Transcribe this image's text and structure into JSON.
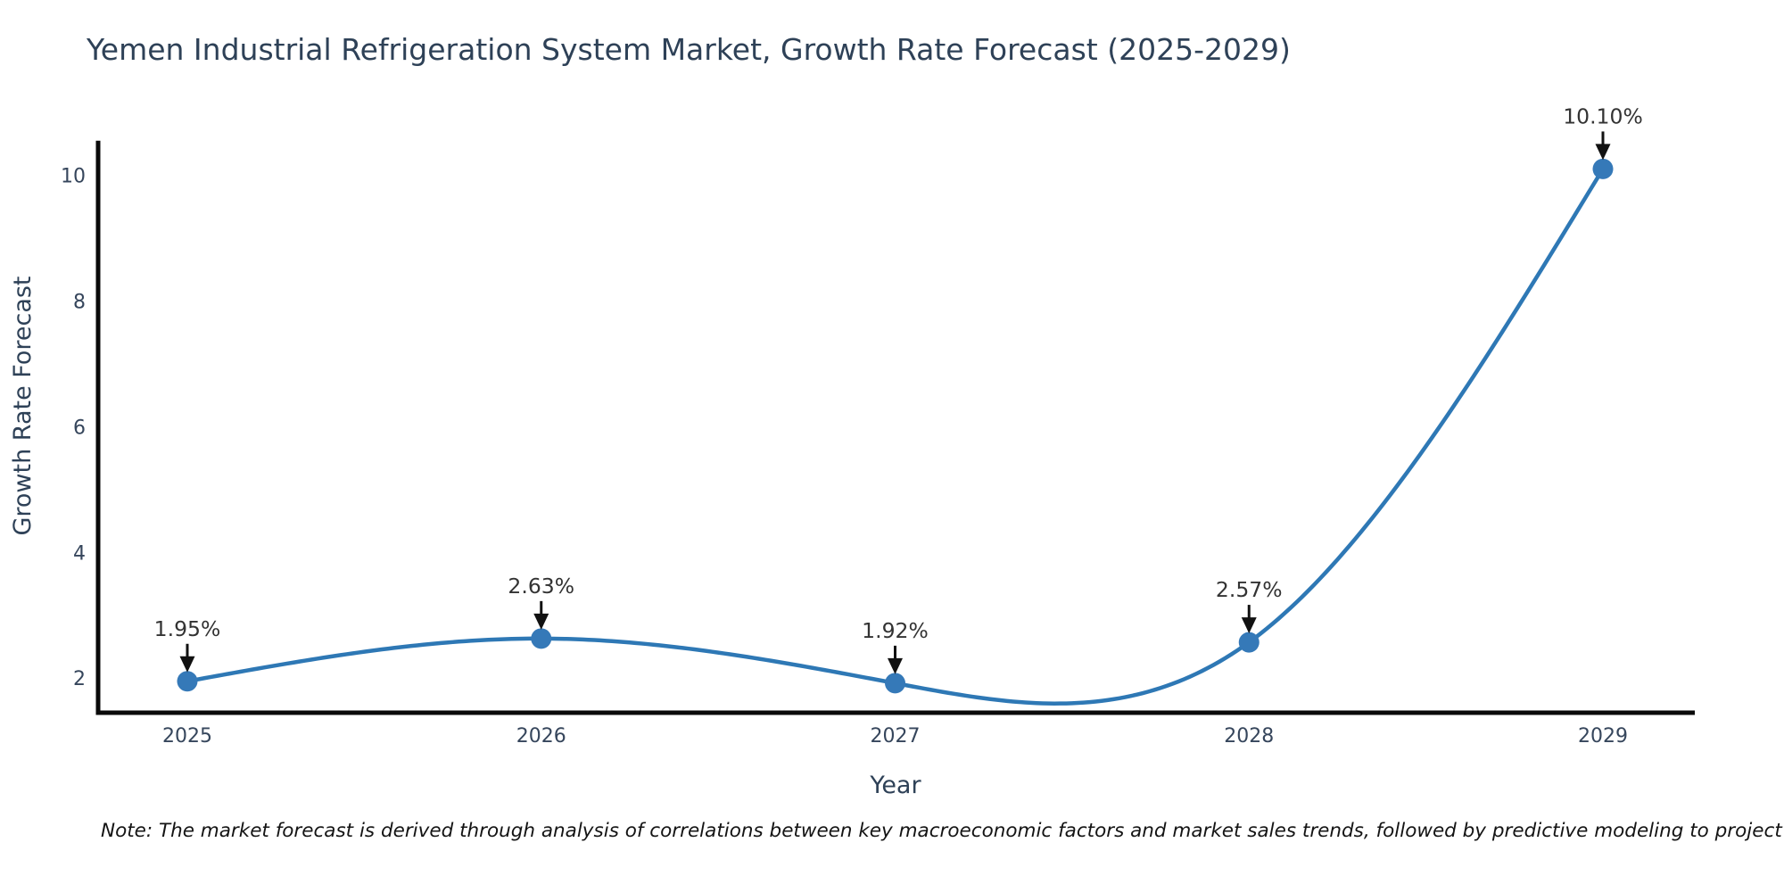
{
  "page": {
    "background": "#ffffff"
  },
  "chart_data": {
    "type": "line",
    "title": "Yemen Industrial Refrigeration System Market, Growth Rate Forecast (2025-2029)",
    "xlabel": "Year",
    "ylabel": "Growth Rate Forecast",
    "categories": [
      "2025",
      "2026",
      "2027",
      "2028",
      "2029"
    ],
    "series": [
      {
        "name": "Growth Rate Forecast",
        "values": [
          1.95,
          2.63,
          1.92,
          2.57,
          10.1
        ],
        "point_labels": [
          "1.95%",
          "2.63%",
          "1.92%",
          "2.57%",
          "10.10%"
        ]
      }
    ],
    "yticks": [
      2,
      4,
      6,
      8,
      10
    ],
    "ylim": [
      1.45,
      10.55
    ],
    "grid": false,
    "legend_position": "none",
    "curve": "smooth-spline",
    "colors": {
      "line": "#2e78b5",
      "marker": "#3579b8",
      "axis": "#0a0a0a",
      "chart_text": "#2e4157",
      "tick_text": "#36465c",
      "annotation_text": "#333333",
      "arrow": "#111111"
    },
    "note": "Note: The market forecast is derived through analysis of correlations between key macroeconomic factors and market sales trends, followed by predictive modeling to project future sales"
  }
}
